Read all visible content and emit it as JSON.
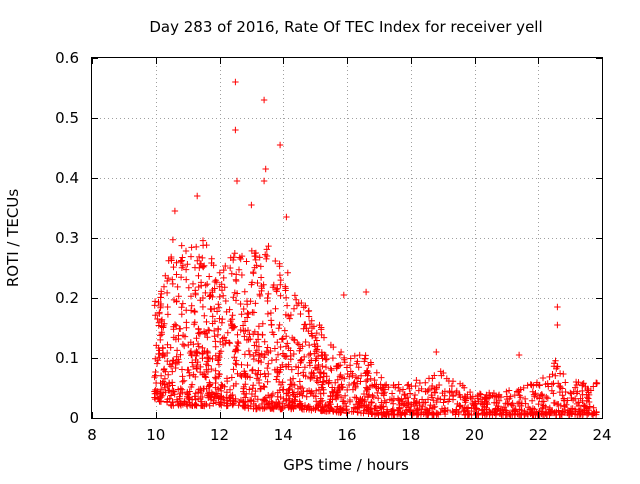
{
  "chart_data": {
    "type": "scatter",
    "title": "Day 283 of 2016, Rate Of TEC Index for receiver yell",
    "xlabel": "GPS time / hours",
    "ylabel": "ROTI / TECUs",
    "xlim": [
      8,
      24
    ],
    "ylim": [
      0,
      0.6
    ],
    "xticks": [
      8,
      10,
      12,
      14,
      16,
      18,
      20,
      22,
      24
    ],
    "yticks": [
      0,
      0.1,
      0.2,
      0.3,
      0.4,
      0.5,
      0.6
    ],
    "xtick_labels": [
      "8",
      "10",
      "12",
      "14",
      "16",
      "18",
      "20",
      "22",
      "24"
    ],
    "ytick_labels": [
      "0",
      "0.1",
      "0.2",
      "0.3",
      "0.4",
      "0.5",
      "0.6"
    ],
    "grid": true,
    "marker": "plus",
    "color": "#ff0000",
    "notable_points": [
      {
        "x": 12.5,
        "y": 0.56
      },
      {
        "x": 13.4,
        "y": 0.53
      },
      {
        "x": 12.5,
        "y": 0.48
      },
      {
        "x": 13.9,
        "y": 0.455
      },
      {
        "x": 13.45,
        "y": 0.415
      },
      {
        "x": 12.55,
        "y": 0.395
      },
      {
        "x": 13.4,
        "y": 0.395
      },
      {
        "x": 11.3,
        "y": 0.37
      },
      {
        "x": 13.0,
        "y": 0.355
      },
      {
        "x": 14.1,
        "y": 0.335
      },
      {
        "x": 10.6,
        "y": 0.345
      },
      {
        "x": 16.6,
        "y": 0.21
      },
      {
        "x": 15.9,
        "y": 0.205
      },
      {
        "x": 22.6,
        "y": 0.185
      },
      {
        "x": 22.6,
        "y": 0.155
      },
      {
        "x": 18.8,
        "y": 0.11
      },
      {
        "x": 21.4,
        "y": 0.105
      }
    ],
    "envelope": [
      {
        "x": 10.0,
        "y_max": 0.2,
        "y_min": 0.03,
        "density": 1.0
      },
      {
        "x": 10.5,
        "y_max": 0.3,
        "y_min": 0.02,
        "density": 1.0
      },
      {
        "x": 11.0,
        "y_max": 0.28,
        "y_min": 0.02,
        "density": 1.0
      },
      {
        "x": 11.5,
        "y_max": 0.3,
        "y_min": 0.02,
        "density": 1.0
      },
      {
        "x": 12.0,
        "y_max": 0.26,
        "y_min": 0.02,
        "density": 1.0
      },
      {
        "x": 12.5,
        "y_max": 0.28,
        "y_min": 0.02,
        "density": 1.0
      },
      {
        "x": 13.0,
        "y_max": 0.28,
        "y_min": 0.015,
        "density": 1.0
      },
      {
        "x": 13.5,
        "y_max": 0.3,
        "y_min": 0.015,
        "density": 1.0
      },
      {
        "x": 14.0,
        "y_max": 0.26,
        "y_min": 0.015,
        "density": 1.0
      },
      {
        "x": 14.5,
        "y_max": 0.2,
        "y_min": 0.015,
        "density": 0.95
      },
      {
        "x": 15.0,
        "y_max": 0.17,
        "y_min": 0.012,
        "density": 0.9
      },
      {
        "x": 15.5,
        "y_max": 0.13,
        "y_min": 0.01,
        "density": 0.8
      },
      {
        "x": 16.0,
        "y_max": 0.1,
        "y_min": 0.008,
        "density": 0.7
      },
      {
        "x": 16.5,
        "y_max": 0.12,
        "y_min": 0.008,
        "density": 0.7
      },
      {
        "x": 17.0,
        "y_max": 0.07,
        "y_min": 0.005,
        "density": 0.6
      },
      {
        "x": 18.0,
        "y_max": 0.06,
        "y_min": 0.005,
        "density": 0.55
      },
      {
        "x": 19.0,
        "y_max": 0.08,
        "y_min": 0.005,
        "density": 0.5
      },
      {
        "x": 20.0,
        "y_max": 0.04,
        "y_min": 0.005,
        "density": 0.45
      },
      {
        "x": 21.0,
        "y_max": 0.045,
        "y_min": 0.005,
        "density": 0.45
      },
      {
        "x": 22.0,
        "y_max": 0.06,
        "y_min": 0.005,
        "density": 0.5
      },
      {
        "x": 22.6,
        "y_max": 0.1,
        "y_min": 0.005,
        "density": 0.55
      },
      {
        "x": 23.0,
        "y_max": 0.06,
        "y_min": 0.005,
        "density": 0.5
      },
      {
        "x": 23.8,
        "y_max": 0.06,
        "y_min": 0.005,
        "density": 0.5
      }
    ],
    "x_start": 9.95,
    "x_end": 23.85
  }
}
